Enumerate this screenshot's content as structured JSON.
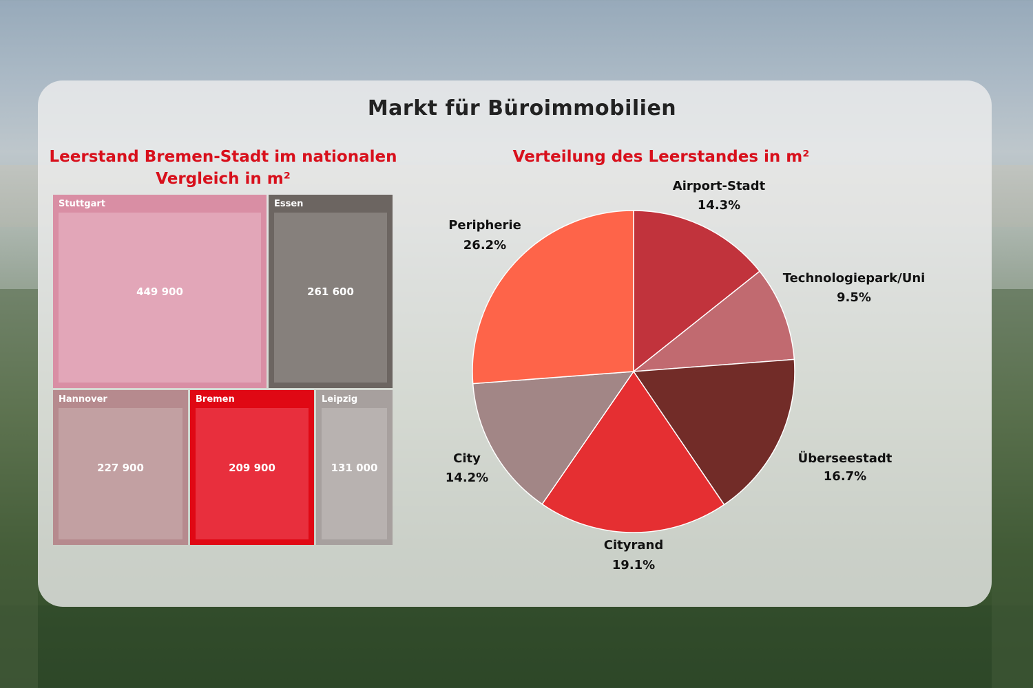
{
  "title": "Markt für Büroimmobilien",
  "treemap": {
    "title_line1": "Leerstand Bremen-Stadt im nationalen",
    "title_line2": "Vergleich in m²",
    "cells": [
      {
        "name": "Stuttgart",
        "value_label": "449 900",
        "value": 449900,
        "outer": "#d98ea4",
        "inner": "#e2a6b8"
      },
      {
        "name": "Essen",
        "value_label": "261 600",
        "value": 261600,
        "outer": "#6c6561",
        "inner": "#86807c"
      },
      {
        "name": "Hannover",
        "value_label": "227 900",
        "value": 227900,
        "outer": "#b68a8e",
        "inner": "#c2a0a2"
      },
      {
        "name": "Bremen",
        "value_label": "209 900",
        "value": 209900,
        "outer": "#e00814",
        "inner": "#e82f3d"
      },
      {
        "name": "Leipzig",
        "value_label": "131 000",
        "value": 131000,
        "outer": "#a7a09e",
        "inner": "#b8b2b0"
      }
    ]
  },
  "chart_data": {
    "type": "pie",
    "title": "Verteilung des Leerstandes in m²",
    "slices": [
      {
        "name": "Airport-Stadt",
        "value": 14.3,
        "label": "14.3%",
        "color": "#c1333c"
      },
      {
        "name": "Technologiepark/Uni",
        "value": 9.5,
        "label": "9.5%",
        "color": "#c16a70"
      },
      {
        "name": "Überseestadt",
        "value": 16.7,
        "label": "16.7%",
        "color": "#722c28"
      },
      {
        "name": "Cityrand",
        "value": 19.1,
        "label": "19.1%",
        "color": "#e52f32"
      },
      {
        "name": "City",
        "value": 14.2,
        "label": "14.2%",
        "color": "#a28686"
      },
      {
        "name": "Peripherie",
        "value": 26.2,
        "label": "26.2%",
        "color": "#fe6449"
      }
    ]
  }
}
